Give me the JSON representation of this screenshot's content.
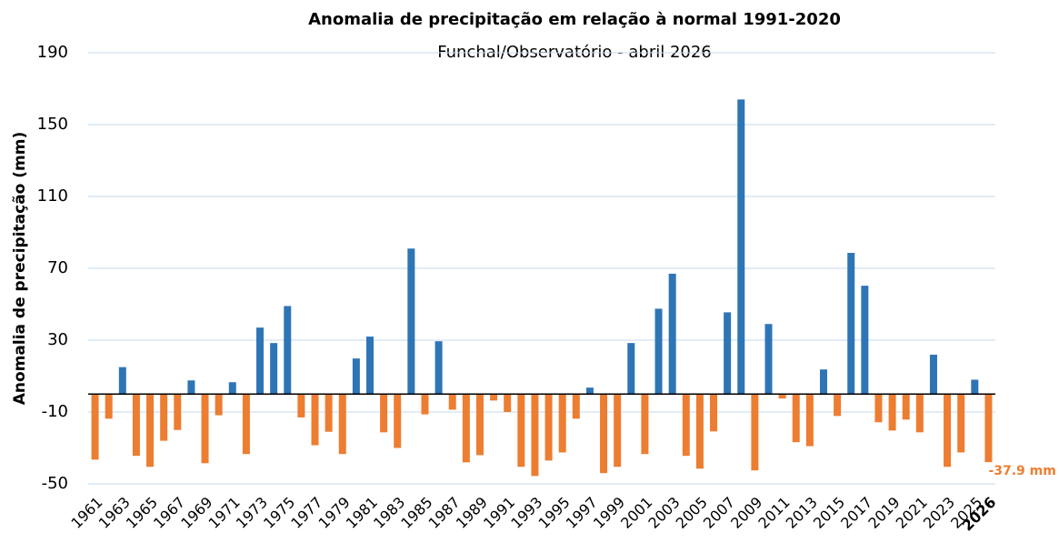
{
  "chart_data": {
    "type": "bar",
    "title": "Anomalia de precipitação em relação à normal 1991-2020",
    "subtitle": "Funchal/Observatório - abril 2026",
    "y_label": "Anomalia de precipitação (mm)",
    "categories": [
      "1961",
      null,
      "1963",
      null,
      "1965",
      null,
      "1967",
      null,
      "1969",
      null,
      "1971",
      null,
      "1973",
      null,
      "1975",
      null,
      "1977",
      null,
      "1979",
      null,
      "1981",
      null,
      "1983",
      null,
      "1985",
      null,
      "1987",
      null,
      "1989",
      null,
      "1991",
      null,
      "1993",
      null,
      "1995",
      null,
      "1997",
      null,
      "1999",
      null,
      "2001",
      null,
      "2003",
      null,
      "2005",
      null,
      "2007",
      null,
      "2009",
      null,
      "2011",
      null,
      "2013",
      null,
      "2015",
      null,
      "2017",
      null,
      "2019",
      null,
      "2021",
      null,
      "2023",
      null,
      "2025",
      "2026"
    ],
    "values": [
      -36.5,
      -13.7,
      15,
      -34.4,
      -40.5,
      -26,
      -20,
      7.6,
      -38.5,
      -11.8,
      6.6,
      -33.4,
      37,
      28.4,
      49,
      -13,
      -28.5,
      -21,
      -33.4,
      19.8,
      32,
      -21.3,
      -30,
      81,
      -11.3,
      29.4,
      -8.7,
      -38,
      -34,
      -3.6,
      -10,
      -40.5,
      -45.6,
      -37,
      -32.5,
      -13.7,
      3.6,
      -44,
      -40.5,
      28.4,
      -33.4,
      47.5,
      67,
      -34.4,
      -41.5,
      -20.8,
      45.5,
      164,
      -42.5,
      39,
      -2.5,
      -26.8,
      -29,
      13.7,
      -12.2,
      78.6,
      60.3,
      -15.7,
      -20.3,
      -14.2,
      -21.3,
      21.9,
      -40.5,
      -32.5,
      8,
      -37.9
    ],
    "value_labels": [
      null,
      null,
      null,
      null,
      null,
      null,
      null,
      null,
      null,
      null,
      null,
      null,
      null,
      null,
      null,
      null,
      null,
      null,
      null,
      null,
      null,
      null,
      null,
      null,
      null,
      null,
      null,
      null,
      null,
      null,
      null,
      null,
      null,
      null,
      null,
      null,
      null,
      null,
      null,
      null,
      null,
      null,
      null,
      null,
      null,
      null,
      null,
      null,
      null,
      null,
      null,
      null,
      null,
      null,
      null,
      null,
      null,
      null,
      null,
      null,
      null,
      null,
      null,
      null,
      null,
      "-37.9 mm"
    ],
    "positive_color": "#2e75b6",
    "negative_color": "#ed7d31",
    "ylim": [
      -50,
      190
    ],
    "yticks": [
      -50,
      -10,
      30,
      70,
      110,
      150,
      190
    ],
    "grid": true
  }
}
